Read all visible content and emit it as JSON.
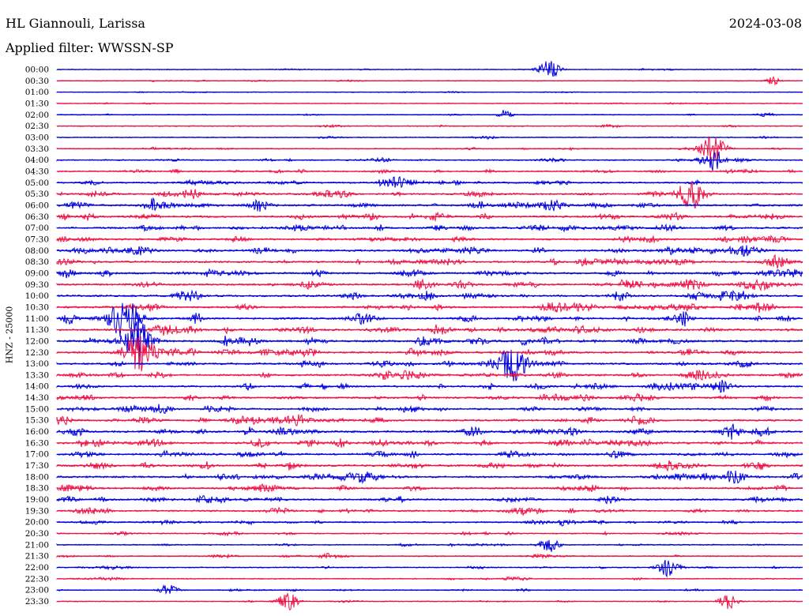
{
  "header": {
    "station": "HL Giannouli, Larissa",
    "filter_label": "Applied filter: WWSSN-SP",
    "date": "2024-03-08"
  },
  "colors": {
    "trace_a": "#0000dd",
    "trace_b": "#ee1144",
    "background": "#ffffff",
    "text": "#000000"
  },
  "chart_data": {
    "type": "line",
    "title": "HL Giannouli, Larissa",
    "subtitle": "Applied filter: WWSSN-SP",
    "ylabel": "HNZ - 25000",
    "xlabel": "",
    "row_interval_minutes": 30,
    "grid": false,
    "trace_colors_alternate": [
      "#0000dd",
      "#ee1144"
    ],
    "rows": [
      "00:00",
      "00:30",
      "01:00",
      "01:30",
      "02:00",
      "02:30",
      "03:00",
      "03:30",
      "04:00",
      "04:30",
      "05:00",
      "05:30",
      "06:00",
      "06:30",
      "07:00",
      "07:30",
      "08:00",
      "08:30",
      "09:00",
      "09:30",
      "10:00",
      "10:30",
      "11:00",
      "11:30",
      "12:00",
      "12:30",
      "13:00",
      "13:30",
      "14:00",
      "14:30",
      "15:00",
      "15:30",
      "16:00",
      "16:30",
      "17:00",
      "17:30",
      "18:00",
      "18:30",
      "19:00",
      "19:30",
      "20:00",
      "20:30",
      "21:00",
      "21:30",
      "22:00",
      "22:30",
      "23:00",
      "23:30"
    ],
    "activity_level": [
      0.12,
      0.1,
      0.1,
      0.12,
      0.14,
      0.18,
      0.16,
      0.2,
      0.3,
      0.35,
      0.45,
      0.5,
      0.6,
      0.6,
      0.6,
      0.55,
      0.6,
      0.6,
      0.6,
      0.6,
      0.6,
      0.6,
      0.65,
      0.65,
      0.65,
      0.6,
      0.6,
      0.6,
      0.55,
      0.5,
      0.55,
      0.6,
      0.65,
      0.65,
      0.6,
      0.6,
      0.6,
      0.55,
      0.5,
      0.45,
      0.4,
      0.25,
      0.25,
      0.25,
      0.25,
      0.2,
      0.18,
      0.14
    ],
    "events": [
      {
        "row": "00:00",
        "time_frac": 0.66,
        "amplitude": 12
      },
      {
        "row": "00:30",
        "time_frac": 0.96,
        "amplitude": 5
      },
      {
        "row": "02:00",
        "time_frac": 0.6,
        "amplitude": 6
      },
      {
        "row": "03:30",
        "time_frac": 0.88,
        "amplitude": 18
      },
      {
        "row": "04:00",
        "time_frac": 0.88,
        "amplitude": 14
      },
      {
        "row": "05:30",
        "time_frac": 0.85,
        "amplitude": 20
      },
      {
        "row": "11:00",
        "time_frac": 0.09,
        "amplitude": 25
      },
      {
        "row": "12:00",
        "time_frac": 0.11,
        "amplitude": 22
      },
      {
        "row": "12:30",
        "time_frac": 0.11,
        "amplitude": 25
      },
      {
        "row": "13:00",
        "time_frac": 0.61,
        "amplitude": 22
      },
      {
        "row": "21:00",
        "time_frac": 0.66,
        "amplitude": 10
      },
      {
        "row": "22:00",
        "time_frac": 0.82,
        "amplitude": 12
      },
      {
        "row": "23:00",
        "time_frac": 0.15,
        "amplitude": 8
      },
      {
        "row": "23:30",
        "time_frac": 0.31,
        "amplitude": 12
      },
      {
        "row": "23:30",
        "time_frac": 0.9,
        "amplitude": 10
      }
    ]
  }
}
